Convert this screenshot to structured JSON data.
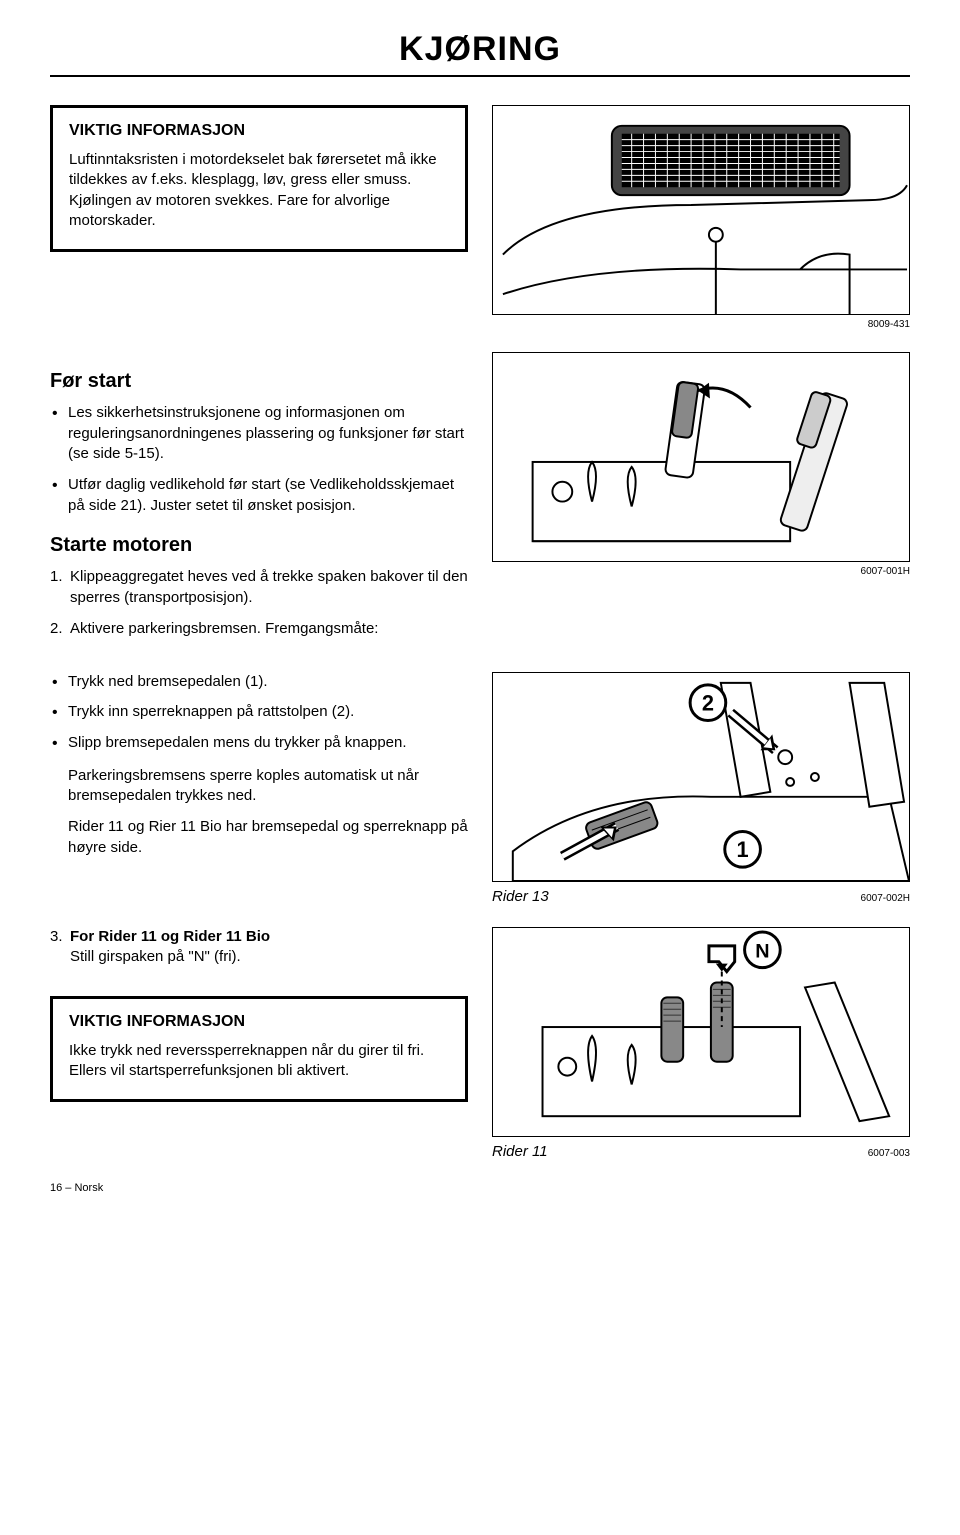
{
  "title": "KJØRING",
  "info_box_1": {
    "title": "VIKTIG INFORMASJON",
    "text": "Luftinntaksristen i motordekselet bak førersetet må ikke tildekkes av f.eks. klesplagg, løv, gress eller smuss.\nKjølingen av motoren svekkes. Fare for alvorlige motorskader."
  },
  "fig1_ref": "8009-431",
  "before_start": {
    "heading": "Før start",
    "items": [
      "Les sikkerhetsinstruksjonene og informasjonen om reguleringsanordningenes plassering og funksjoner før start (se side 5-15).",
      "Utfør daglig vedlikehold før start (se Vedlikeholdsskjemaet på side 21). Juster setet til ønsket posisjon."
    ]
  },
  "start_motor": {
    "heading": "Starte motoren",
    "step1": "Klippeaggregatet heves ved å trekke spaken bakover til den sperres (transportposisjon).",
    "step2_intro": "Aktivere parkeringsbremsen. Fremgangsmåte:",
    "step2_bullets": [
      "Trykk ned bremsepedalen (1).",
      "Trykk inn sperreknappen på rattstolpen (2).",
      "Slipp bremsepedalen mens du trykker på knappen."
    ],
    "para1": "Parkeringsbremsens sperre koples automatisk ut når bremsepedalen trykkes ned.",
    "para2": "Rider 11 og Rier 11 Bio har bremsepedal og sperreknapp på høyre side."
  },
  "fig2_ref": "6007-001H",
  "fig3": {
    "caption": "Rider 13",
    "ref": "6007-002H",
    "label_1": "1",
    "label_2": "2"
  },
  "step3": {
    "num": "3.",
    "title": "For Rider 11 og Rider 11 Bio",
    "text": "Still girspaken på \"N\" (fri)."
  },
  "info_box_2": {
    "title": "VIKTIG INFORMASJON",
    "text": "Ikke trykk ned reverssperreknappen når du girer til fri. Ellers vil startsperrefunksjonen bli aktivert."
  },
  "fig4": {
    "caption": "Rider 11",
    "ref": "6007-003",
    "label_N": "N"
  },
  "footer": "16 – Norsk",
  "nums": {
    "one": "1.",
    "two": "2."
  },
  "colors": {
    "page_bg": "#ffffff",
    "fg": "#000000"
  }
}
